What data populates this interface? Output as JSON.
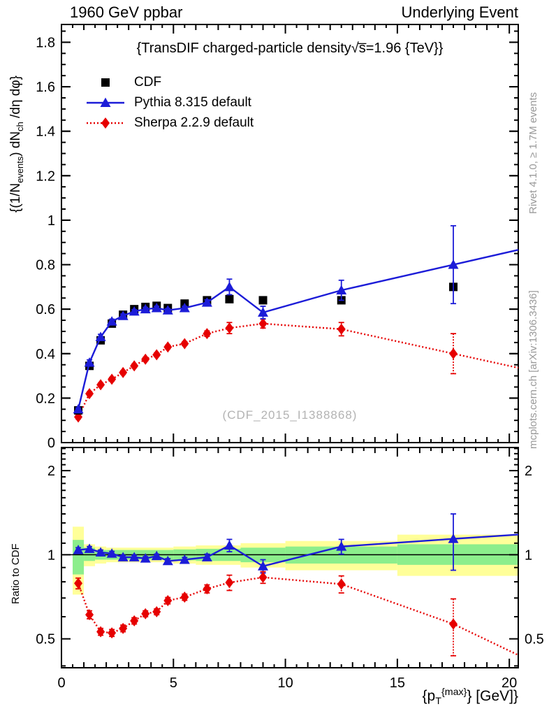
{
  "header": {
    "left": "1960 GeV ppbar",
    "right": "Underlying Event"
  },
  "title": "{TransDIF charged-particle density√s̅=1.96 {TeV}}",
  "watermark": "(CDF_2015_I1388868)",
  "side_notes": {
    "top": "Rivet 4.1.0, ≥ 1.7M events",
    "bottom": "mcplots.cern.ch [arXiv:1306.3436]"
  },
  "axes": {
    "y_main_label_html": "{(1/N<sub>events</sub>) dN<sub>ch</sub> /dη dφ}",
    "ratio_label": "Ratio to CDF",
    "x_label_html": "{p<sub>T</sub><sup>{max}</sup>} [GeV]}"
  },
  "legend": [
    {
      "label": "CDF",
      "marker": "square",
      "line": "none",
      "color": "#000000"
    },
    {
      "label": "Pythia 8.315 default",
      "marker": "triangle",
      "line": "solid",
      "color": "#1c1cd8"
    },
    {
      "label": "Sherpa 2.2.9 default",
      "marker": "diamond",
      "line": "dotted",
      "color": "#e60000"
    }
  ],
  "colors": {
    "pythia_blue": "#1c1cd8",
    "sherpa_red": "#e60000",
    "band_yellow": "#ffff99",
    "band_green": "#8cee8c",
    "gray_text": "#9a9a9a"
  },
  "chart_data": [
    {
      "type": "line",
      "panel": "main",
      "title": "TransDIF charged-particle density sqrt(s)=1.96 TeV",
      "ylabel": "(1/N_events) dN_ch/deta dphi",
      "xlabel": "pT^max [GeV]",
      "xlim": [
        0,
        20.4
      ],
      "ylim": [
        0,
        1.88
      ],
      "x": [
        0.75,
        1.25,
        1.75,
        2.25,
        2.75,
        3.25,
        3.75,
        4.25,
        4.75,
        5.5,
        6.5,
        7.5,
        9,
        12.5,
        17.5
      ],
      "series": [
        {
          "name": "CDF",
          "marker": "square",
          "line": "none",
          "color": "#000000",
          "values": [
            0.145,
            0.345,
            0.46,
            0.535,
            0.575,
            0.6,
            0.61,
            0.615,
            0.605,
            0.625,
            0.64,
            0.645,
            0.64,
            0.64,
            0.7
          ],
          "errors": [
            0.008,
            0.008,
            0.008,
            0.008,
            0.008,
            0.008,
            0.008,
            0.008,
            0.008,
            0.008,
            0.008,
            0.01,
            0.01,
            0.012,
            0.015
          ]
        },
        {
          "name": "Pythia 8.315 default",
          "marker": "triangle",
          "line": "solid",
          "color": "#1c1cd8",
          "values": [
            0.15,
            0.36,
            0.475,
            0.545,
            0.57,
            0.59,
            0.6,
            0.605,
            0.595,
            0.605,
            0.63,
            0.7,
            0.585,
            0.685,
            0.8
          ],
          "errors": [
            0.006,
            0.012,
            0.012,
            0.01,
            0.008,
            0.008,
            0.008,
            0.008,
            0.008,
            0.008,
            0.012,
            0.035,
            0.028,
            0.045,
            0.175
          ]
        },
        {
          "name": "Sherpa 2.2.9 default",
          "marker": "diamond",
          "line": "dotted",
          "color": "#e60000",
          "values": [
            0.115,
            0.22,
            0.26,
            0.285,
            0.315,
            0.345,
            0.375,
            0.395,
            0.43,
            0.445,
            0.49,
            0.515,
            0.535,
            0.51,
            0.4
          ],
          "errors": [
            0.008,
            0.008,
            0.008,
            0.008,
            0.008,
            0.008,
            0.008,
            0.008,
            0.008,
            0.008,
            0.012,
            0.025,
            0.02,
            0.03,
            0.09
          ]
        }
      ],
      "yticks": {
        "majors": [
          0,
          0.2,
          0.4,
          0.6,
          0.8,
          1.0,
          1.2,
          1.4,
          1.6,
          1.8
        ],
        "labels": [
          "0",
          "0.2",
          "0.4",
          "0.6",
          "0.8",
          "1",
          "1.2",
          "1.4",
          "1.6",
          "1.8"
        ],
        "minor_step": 0.05
      },
      "xticks": {
        "majors": [
          0,
          5,
          10,
          15,
          20
        ],
        "labels": [
          "0",
          "5",
          "10",
          "15",
          "20"
        ],
        "medium_step": 1,
        "minor_step": 0.5
      },
      "show_x_labels": false
    },
    {
      "type": "line",
      "panel": "ratio",
      "ylabel": "Ratio to CDF",
      "yscale": "log",
      "xlim": [
        0,
        20.4
      ],
      "ylim": [
        0.394,
        2.42
      ],
      "x": [
        0.75,
        1.25,
        1.75,
        2.25,
        2.75,
        3.25,
        3.75,
        4.25,
        4.75,
        5.5,
        6.5,
        7.5,
        9,
        12.5,
        17.5
      ],
      "series": [
        {
          "name": "Pythia 8.315 default / CDF",
          "marker": "triangle",
          "line": "solid",
          "color": "#1c1cd8",
          "values": [
            1.04,
            1.05,
            1.02,
            1.01,
            0.98,
            0.98,
            0.97,
            0.99,
            0.95,
            0.96,
            0.98,
            1.08,
            0.91,
            1.07,
            1.14
          ],
          "errors": [
            0.02,
            0.02,
            0.02,
            0.018,
            0.015,
            0.015,
            0.015,
            0.015,
            0.018,
            0.018,
            0.025,
            0.055,
            0.05,
            0.065,
            0.26
          ]
        },
        {
          "name": "Sherpa 2.2.9 default / CDF",
          "marker": "diamond",
          "line": "dotted",
          "color": "#e60000",
          "values": [
            0.79,
            0.61,
            0.53,
            0.525,
            0.545,
            0.58,
            0.615,
            0.625,
            0.685,
            0.705,
            0.755,
            0.795,
            0.83,
            0.785,
            0.565
          ],
          "errors": [
            0.035,
            0.02,
            0.015,
            0.015,
            0.015,
            0.015,
            0.015,
            0.015,
            0.018,
            0.018,
            0.025,
            0.05,
            0.04,
            0.055,
            0.13
          ]
        }
      ],
      "reference_line": 1,
      "bands": [
        {
          "x0": 0.5,
          "x1": 1.0,
          "yellow": [
            0.72,
            1.26
          ],
          "green": [
            0.85,
            1.13
          ]
        },
        {
          "x0": 1.0,
          "x1": 1.5,
          "yellow": [
            0.91,
            1.09
          ],
          "green": [
            0.95,
            1.06
          ]
        },
        {
          "x0": 1.5,
          "x1": 2.0,
          "yellow": [
            0.93,
            1.07
          ],
          "green": [
            0.96,
            1.04
          ]
        },
        {
          "x0": 2.0,
          "x1": 5.0,
          "yellow": [
            0.94,
            1.06
          ],
          "green": [
            0.96,
            1.04
          ]
        },
        {
          "x0": 5.0,
          "x1": 6.0,
          "yellow": [
            0.93,
            1.07
          ],
          "green": [
            0.955,
            1.045
          ]
        },
        {
          "x0": 6.0,
          "x1": 8.0,
          "yellow": [
            0.92,
            1.08
          ],
          "green": [
            0.95,
            1.05
          ]
        },
        {
          "x0": 8.0,
          "x1": 10.0,
          "yellow": [
            0.9,
            1.1
          ],
          "green": [
            0.94,
            1.06
          ]
        },
        {
          "x0": 10.0,
          "x1": 15.0,
          "yellow": [
            0.88,
            1.12
          ],
          "green": [
            0.93,
            1.07
          ]
        },
        {
          "x0": 15.0,
          "x1": 20.4,
          "yellow": [
            0.84,
            1.18
          ],
          "green": [
            0.92,
            1.09
          ]
        }
      ],
      "yticks": {
        "majors": [
          0.5,
          1,
          2
        ],
        "labels": [
          "0.5",
          "1",
          "2"
        ],
        "minors": [
          0.4,
          0.6,
          0.7,
          0.8,
          0.9,
          1.1,
          1.2,
          1.3,
          1.4,
          1.5,
          1.6,
          1.7,
          1.8,
          1.9,
          2.1,
          2.2,
          2.3,
          2.4
        ]
      },
      "xticks": {
        "majors": [
          0,
          5,
          10,
          15,
          20
        ],
        "labels": [
          "0",
          "5",
          "10",
          "15",
          "20"
        ],
        "medium_step": 1,
        "minor_step": 0.5
      },
      "show_x_labels": true
    }
  ]
}
